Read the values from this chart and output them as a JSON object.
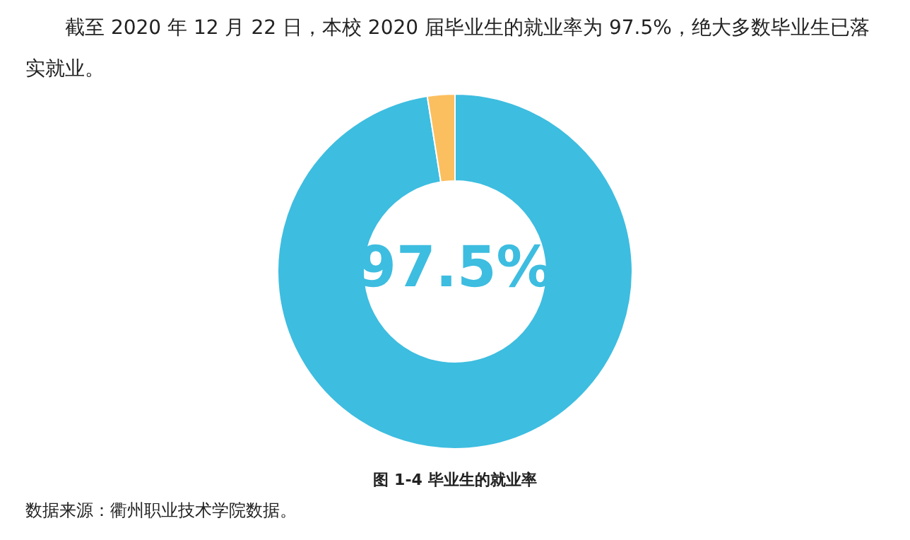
{
  "chart_data": {
    "type": "donut",
    "title": "图 1-4  毕业生的就业率",
    "annotations": [
      "截至 2020 年 12 月 22 日，本校 2020 届毕业生的就业率为 97.5%，绝大多数毕业生已落实就业。",
      "数据来源：衢州职业技术学院数据。"
    ],
    "categories": [
      null,
      null
    ],
    "values": [
      97.5,
      2.5
    ],
    "colors": [
      "#3dbde0",
      "#fbbf5f"
    ],
    "value_labels": [
      "97.5%",
      null
    ]
  }
}
